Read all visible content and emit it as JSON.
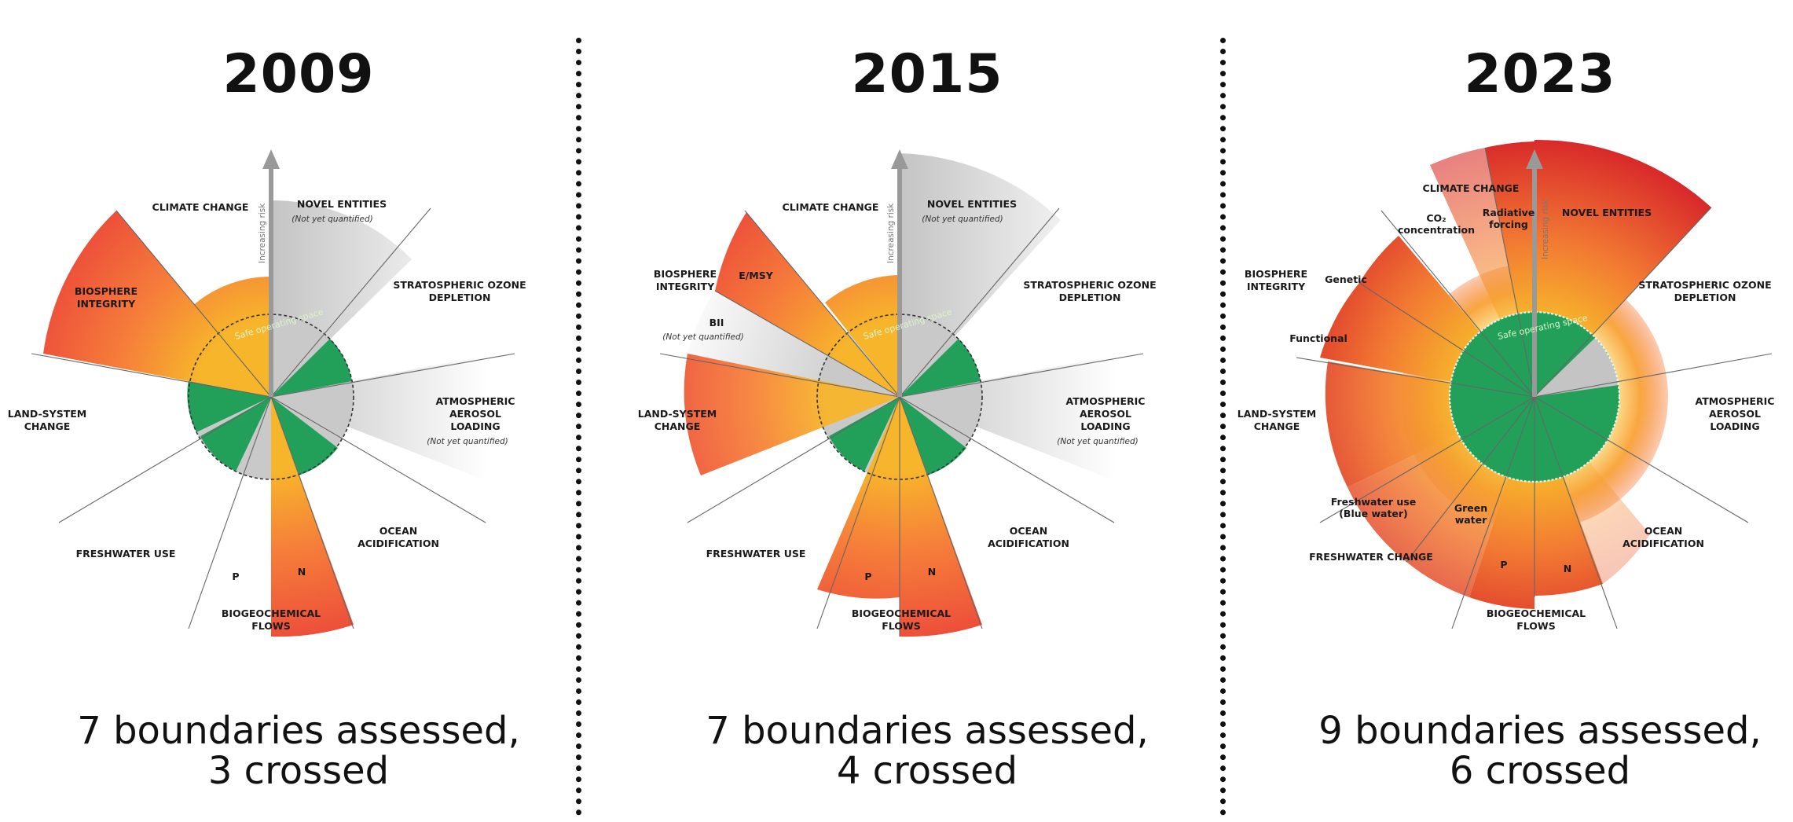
{
  "panels": [
    {
      "year": "2009",
      "caption_line1": "7 boundaries assessed,",
      "caption_line2": "3 crossed",
      "labels": {
        "climate_change": "CLIMATE CHANGE",
        "novel_entities": "NOVEL ENTITIES",
        "novel_entities_note": "(Not yet quantified)",
        "ozone_1": "STRATOSPHERIC OZONE",
        "ozone_2": "DEPLETION",
        "aerosol_1": "ATMOSPHERIC",
        "aerosol_2": "AEROSOL",
        "aerosol_3": "LOADING",
        "aerosol_note": "(Not yet quantified)",
        "ocean_1": "OCEAN",
        "ocean_2": "ACIDIFICATION",
        "biogeo_1": "BIOGEOCHEMICAL",
        "biogeo_2": "FLOWS",
        "p": "P",
        "n": "N",
        "freshwater": "FRESHWATER USE",
        "land_1": "LAND-SYSTEM",
        "land_2": "CHANGE",
        "bio_1": "BIOSPHERE",
        "bio_2": "INTEGRITY",
        "risk": "Increasing risk",
        "safe": "Safe operating space"
      }
    },
    {
      "year": "2015",
      "caption_line1": "7 boundaries assessed,",
      "caption_line2": "4 crossed",
      "labels": {
        "climate_change": "CLIMATE CHANGE",
        "novel_entities": "NOVEL ENTITIES",
        "novel_entities_note": "(Not yet quantified)",
        "ozone_1": "STRATOSPHERIC OZONE",
        "ozone_2": "DEPLETION",
        "aerosol_1": "ATMOSPHERIC",
        "aerosol_2": "AEROSOL",
        "aerosol_3": "LOADING",
        "aerosol_note": "(Not yet quantified)",
        "ocean_1": "OCEAN",
        "ocean_2": "ACIDIFICATION",
        "biogeo_1": "BIOGEOCHEMICAL",
        "biogeo_2": "FLOWS",
        "p": "P",
        "n": "N",
        "freshwater": "FRESHWATER USE",
        "land_1": "LAND-SYSTEM",
        "land_2": "CHANGE",
        "bio_1": "BIOSPHERE",
        "bio_2": "INTEGRITY",
        "emsy": "E/MSY",
        "bii": "BII",
        "bii_note": "(Not yet quantified)",
        "risk": "Increasing risk",
        "safe": "Safe operating space"
      }
    },
    {
      "year": "2023",
      "caption_line1": "9 boundaries assessed,",
      "caption_line2": "6 crossed",
      "labels": {
        "climate_change": "CLIMATE CHANGE",
        "co2_1": "CO₂",
        "co2_2": "concentration",
        "rad_1": "Radiative",
        "rad_2": "forcing",
        "novel_entities": "NOVEL ENTITIES",
        "ozone_1": "STRATOSPHERIC OZONE",
        "ozone_2": "DEPLETION",
        "aerosol_1": "ATMOSPHERIC",
        "aerosol_2": "AEROSOL",
        "aerosol_3": "LOADING",
        "ocean_1": "OCEAN",
        "ocean_2": "ACIDIFICATION",
        "biogeo_1": "BIOGEOCHEMICAL",
        "biogeo_2": "FLOWS",
        "p": "P",
        "n": "N",
        "freshwater": "FRESHWATER CHANGE",
        "blue_1": "Freshwater use",
        "blue_2": "(Blue water)",
        "green_1": "Green",
        "green_2": "water",
        "land_1": "LAND-SYSTEM",
        "land_2": "CHANGE",
        "bio_1": "BIOSPHERE",
        "bio_2": "INTEGRITY",
        "genetic": "Genetic",
        "functional": "Functional",
        "risk": "Increasing risk",
        "safe": "Safe operating space"
      }
    }
  ]
}
